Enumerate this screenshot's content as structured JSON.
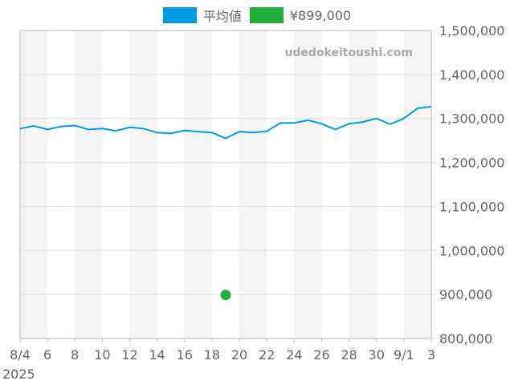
{
  "chart_data": {
    "type": "line",
    "title": "",
    "xlabel": "",
    "ylabel": "",
    "watermark": "udedokeitoushi.com",
    "legend": [
      {
        "name": "平均値",
        "color": "#039be5",
        "kind": "line"
      },
      {
        "name": "¥899,000",
        "color": "#22b03a",
        "kind": "point"
      }
    ],
    "legend_position": "top",
    "grid": true,
    "ylim": [
      800000,
      1500000
    ],
    "y_ticks": [
      800000,
      900000,
      1000000,
      1100000,
      1200000,
      1300000,
      1400000,
      1500000
    ],
    "y_tick_labels": [
      "800,000",
      "900,000",
      "1,000,000",
      "1,100,000",
      "1,200,000",
      "1,300,000",
      "1,400,000",
      "1,500,000"
    ],
    "x_ticks": [
      "8/4",
      "6",
      "8",
      "10",
      "12",
      "14",
      "16",
      "18",
      "20",
      "22",
      "24",
      "26",
      "28",
      "30",
      "9/1",
      "3"
    ],
    "x_year_label": "2025",
    "x": [
      "8/4",
      "8/5",
      "8/6",
      "8/7",
      "8/8",
      "8/9",
      "8/10",
      "8/11",
      "8/12",
      "8/13",
      "8/14",
      "8/15",
      "8/16",
      "8/17",
      "8/18",
      "8/19",
      "8/20",
      "8/21",
      "8/22",
      "8/23",
      "8/24",
      "8/25",
      "8/26",
      "8/27",
      "8/28",
      "8/29",
      "8/30",
      "8/31",
      "9/1",
      "9/2",
      "9/3"
    ],
    "series": [
      {
        "name": "平均値",
        "values": [
          1277000,
          1283000,
          1275000,
          1282000,
          1284000,
          1275000,
          1277000,
          1272000,
          1280000,
          1277000,
          1268000,
          1266000,
          1273000,
          1270000,
          1268000,
          1255000,
          1270000,
          1268000,
          1271000,
          1290000,
          1290000,
          1296000,
          1288000,
          1275000,
          1288000,
          1292000,
          1300000,
          1287000,
          1300000,
          1323000,
          1327000
        ]
      },
      {
        "name": "¥899,000",
        "points": [
          {
            "x": "8/19",
            "y": 899000
          }
        ]
      }
    ]
  }
}
